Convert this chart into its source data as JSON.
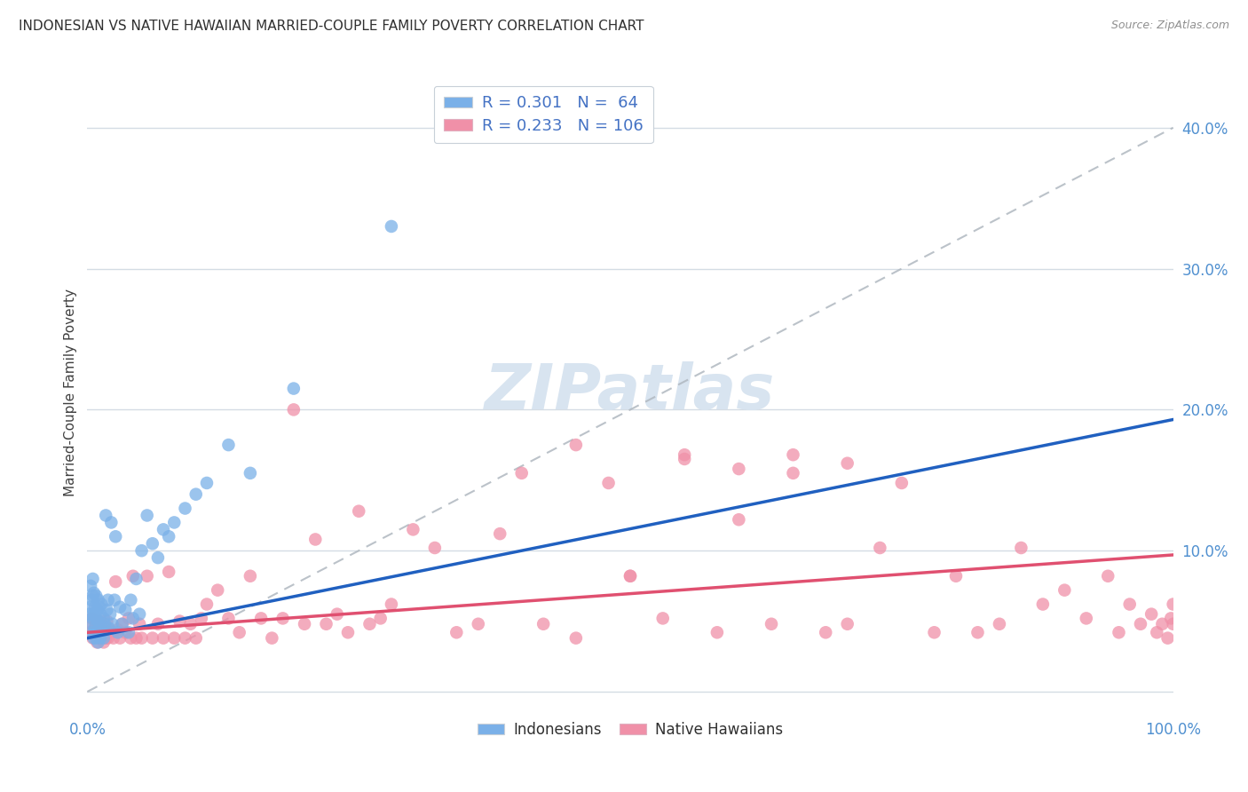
{
  "title": "INDONESIAN VS NATIVE HAWAIIAN MARRIED-COUPLE FAMILY POVERTY CORRELATION CHART",
  "source": "Source: ZipAtlas.com",
  "ylabel": "Married-Couple Family Poverty",
  "ytick_labels": [
    "",
    "10.0%",
    "20.0%",
    "30.0%",
    "40.0%"
  ],
  "ytick_values": [
    0.0,
    0.1,
    0.2,
    0.3,
    0.4
  ],
  "xlim": [
    0.0,
    1.0
  ],
  "ylim": [
    -0.015,
    0.44
  ],
  "indonesian_color": "#7ab0e8",
  "hawaiian_color": "#f090a8",
  "indonesian_line_color": "#2060c0",
  "hawaiian_line_color": "#e05070",
  "ref_line_color": "#b0b8c0",
  "background_color": "#ffffff",
  "grid_color": "#d4dce4",
  "title_color": "#303030",
  "axis_tick_color": "#5090d0",
  "legend_text_color": "#4472c4",
  "legend_border_color": "#c8d0d8",
  "watermark_color": "#d8e4f0",
  "indonesian_scatter_x": [
    0.002,
    0.003,
    0.003,
    0.004,
    0.004,
    0.005,
    0.005,
    0.005,
    0.005,
    0.006,
    0.006,
    0.006,
    0.007,
    0.007,
    0.008,
    0.008,
    0.008,
    0.009,
    0.009,
    0.01,
    0.01,
    0.01,
    0.011,
    0.011,
    0.012,
    0.012,
    0.013,
    0.013,
    0.014,
    0.015,
    0.015,
    0.016,
    0.017,
    0.018,
    0.019,
    0.02,
    0.021,
    0.022,
    0.023,
    0.025,
    0.026,
    0.028,
    0.03,
    0.032,
    0.035,
    0.038,
    0.04,
    0.042,
    0.045,
    0.048,
    0.05,
    0.055,
    0.06,
    0.065,
    0.07,
    0.075,
    0.08,
    0.09,
    0.1,
    0.11,
    0.13,
    0.15,
    0.19,
    0.28
  ],
  "indonesian_scatter_y": [
    0.055,
    0.06,
    0.075,
    0.048,
    0.065,
    0.042,
    0.052,
    0.068,
    0.08,
    0.038,
    0.055,
    0.07,
    0.045,
    0.06,
    0.038,
    0.052,
    0.068,
    0.042,
    0.058,
    0.035,
    0.05,
    0.065,
    0.045,
    0.06,
    0.038,
    0.055,
    0.048,
    0.062,
    0.042,
    0.038,
    0.052,
    0.048,
    0.125,
    0.058,
    0.065,
    0.045,
    0.055,
    0.12,
    0.048,
    0.065,
    0.11,
    0.042,
    0.06,
    0.048,
    0.058,
    0.042,
    0.065,
    0.052,
    0.08,
    0.055,
    0.1,
    0.125,
    0.105,
    0.095,
    0.115,
    0.11,
    0.12,
    0.13,
    0.14,
    0.148,
    0.175,
    0.155,
    0.215,
    0.33
  ],
  "hawaiian_scatter_x": [
    0.002,
    0.003,
    0.004,
    0.005,
    0.006,
    0.007,
    0.008,
    0.009,
    0.01,
    0.011,
    0.012,
    0.013,
    0.014,
    0.015,
    0.016,
    0.017,
    0.018,
    0.019,
    0.02,
    0.022,
    0.024,
    0.026,
    0.028,
    0.03,
    0.032,
    0.035,
    0.038,
    0.04,
    0.042,
    0.045,
    0.048,
    0.05,
    0.055,
    0.06,
    0.065,
    0.07,
    0.075,
    0.08,
    0.085,
    0.09,
    0.095,
    0.1,
    0.105,
    0.11,
    0.12,
    0.13,
    0.14,
    0.15,
    0.16,
    0.17,
    0.18,
    0.19,
    0.2,
    0.21,
    0.22,
    0.23,
    0.24,
    0.25,
    0.26,
    0.27,
    0.28,
    0.3,
    0.32,
    0.34,
    0.36,
    0.38,
    0.4,
    0.42,
    0.45,
    0.48,
    0.5,
    0.53,
    0.55,
    0.58,
    0.6,
    0.63,
    0.65,
    0.68,
    0.7,
    0.73,
    0.75,
    0.78,
    0.8,
    0.82,
    0.84,
    0.86,
    0.88,
    0.9,
    0.92,
    0.94,
    0.95,
    0.96,
    0.97,
    0.98,
    0.985,
    0.99,
    0.995,
    0.998,
    1.0,
    1.0,
    0.45,
    0.5,
    0.55,
    0.6,
    0.65,
    0.7
  ],
  "hawaiian_scatter_y": [
    0.042,
    0.048,
    0.052,
    0.038,
    0.044,
    0.04,
    0.048,
    0.035,
    0.042,
    0.038,
    0.05,
    0.038,
    0.044,
    0.035,
    0.042,
    0.038,
    0.05,
    0.038,
    0.044,
    0.042,
    0.038,
    0.078,
    0.044,
    0.038,
    0.048,
    0.042,
    0.052,
    0.038,
    0.082,
    0.038,
    0.048,
    0.038,
    0.082,
    0.038,
    0.048,
    0.038,
    0.085,
    0.038,
    0.05,
    0.038,
    0.048,
    0.038,
    0.052,
    0.062,
    0.072,
    0.052,
    0.042,
    0.082,
    0.052,
    0.038,
    0.052,
    0.2,
    0.048,
    0.108,
    0.048,
    0.055,
    0.042,
    0.128,
    0.048,
    0.052,
    0.062,
    0.115,
    0.102,
    0.042,
    0.048,
    0.112,
    0.155,
    0.048,
    0.038,
    0.148,
    0.082,
    0.052,
    0.168,
    0.042,
    0.122,
    0.048,
    0.155,
    0.042,
    0.048,
    0.102,
    0.148,
    0.042,
    0.082,
    0.042,
    0.048,
    0.102,
    0.062,
    0.072,
    0.052,
    0.082,
    0.042,
    0.062,
    0.048,
    0.055,
    0.042,
    0.048,
    0.038,
    0.052,
    0.048,
    0.062,
    0.175,
    0.082,
    0.165,
    0.158,
    0.168,
    0.162
  ],
  "indo_trend_x": [
    0.0,
    1.0
  ],
  "indo_trend_y_intercept": 0.038,
  "indo_trend_slope": 0.155,
  "haw_trend_x": [
    0.0,
    1.0
  ],
  "haw_trend_y_intercept": 0.042,
  "haw_trend_slope": 0.055
}
